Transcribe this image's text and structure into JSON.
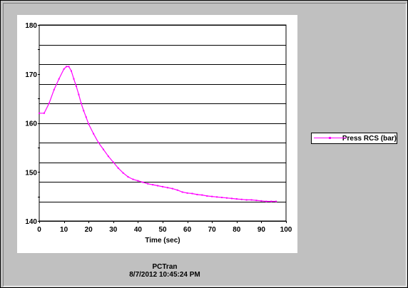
{
  "footer": {
    "app_name": "PCTran",
    "timestamp": "8/7/2012 10:45:24 PM"
  },
  "legend": {
    "label": "Press RCS (bar)"
  },
  "colors": {
    "series": "#ff00ff",
    "background": "#c0c0c0",
    "plot_background": "#ffffff",
    "grid": "#000000"
  },
  "chart_data": {
    "type": "line",
    "xlabel": "Time (sec)",
    "ylabel": "",
    "xlim": [
      0,
      100
    ],
    "ylim": [
      140,
      180
    ],
    "x_ticks": [
      0,
      10,
      20,
      30,
      40,
      50,
      60,
      70,
      80,
      90,
      100
    ],
    "y_ticks": [
      140,
      150,
      160,
      170,
      180
    ],
    "grid": "horizontal",
    "legend_position": "right",
    "series": [
      {
        "name": "Press RCS (bar)",
        "color": "#ff00ff",
        "x": [
          0,
          2,
          4,
          6,
          8,
          10,
          11,
          12,
          13,
          14,
          15,
          16,
          17,
          18,
          19,
          20,
          22,
          24,
          26,
          28,
          30,
          32,
          34,
          36,
          38,
          40,
          42,
          44,
          46,
          48,
          50,
          52,
          54,
          56,
          58,
          60,
          62,
          64,
          66,
          68,
          70,
          72,
          74,
          76,
          78,
          80,
          82,
          84,
          86,
          88,
          90,
          92,
          94,
          96
        ],
        "y": [
          162.0,
          162.0,
          164.0,
          166.8,
          169.0,
          171.0,
          171.5,
          171.5,
          170.6,
          169.0,
          167.5,
          165.8,
          164.0,
          162.5,
          161.2,
          159.8,
          157.8,
          156.0,
          154.6,
          153.2,
          152.0,
          150.8,
          149.8,
          149.0,
          148.5,
          148.2,
          147.9,
          147.6,
          147.4,
          147.2,
          147.0,
          146.8,
          146.6,
          146.3,
          145.9,
          145.7,
          145.6,
          145.4,
          145.3,
          145.1,
          145.0,
          144.9,
          144.8,
          144.7,
          144.6,
          144.5,
          144.4,
          144.3,
          144.3,
          144.2,
          144.1,
          144.0,
          144.0,
          144.0
        ]
      }
    ]
  }
}
